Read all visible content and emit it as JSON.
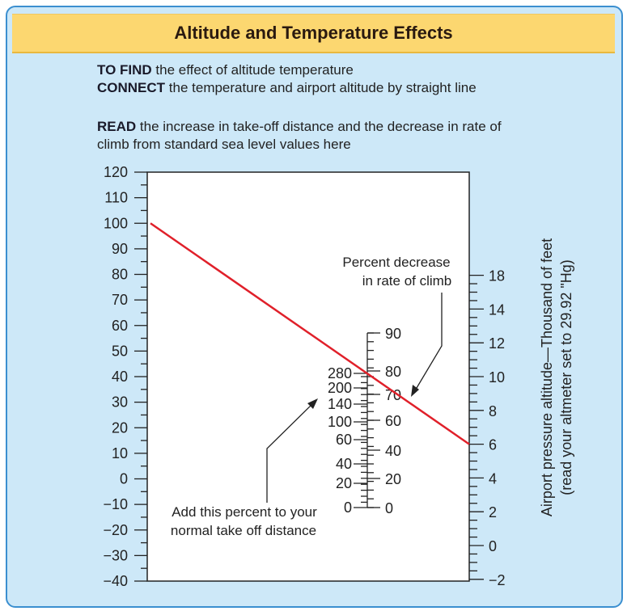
{
  "title": "Altitude and Temperature Effects",
  "instructions": [
    {
      "bold": "TO FIND",
      "text": " the effect of altitude temperature"
    },
    {
      "bold": "CONNECT",
      "text": " the temperature and airport altitude by straight line"
    },
    {
      "bold": "READ",
      "text": " the increase in take-off distance and the decrease in rate of"
    },
    {
      "bold": "",
      "text": "climb from standard sea level values here"
    }
  ],
  "temperature_axis": {
    "labels": [
      "120",
      "110",
      "100",
      "90",
      "80",
      "70",
      "60",
      "50",
      "40",
      "30",
      "20",
      "10",
      "0",
      "−10",
      "−20",
      "−30",
      "−40"
    ],
    "min": -40,
    "max": 120
  },
  "altitude_axis": {
    "labels": [
      "18",
      "14",
      "12",
      "10",
      "8",
      "6",
      "4",
      "2",
      "0",
      "−2"
    ],
    "title_line1": "Airport pressure altitude—Thousand of feet",
    "title_line2": "(read your altmeter set to 29.92 \"Hg)"
  },
  "center_scale": {
    "takeoff_labels": [
      "280",
      "200",
      "140",
      "100",
      "60",
      "40",
      "20",
      "0"
    ],
    "climb_labels": [
      "90",
      "80",
      "70",
      "60",
      "40",
      "20",
      "0"
    ]
  },
  "annotations": {
    "climb_line1": "Percent decrease",
    "climb_line2": "in rate of climb",
    "takeoff_line1": "Add this percent to your",
    "takeoff_line2": "normal take off distance"
  },
  "example_line": {
    "temperature": 100,
    "altitude": 6,
    "color": "#e0202a"
  },
  "colors": {
    "background": "#cde8f8",
    "border": "#3b8fd0",
    "title_bar": "#fcd770"
  }
}
